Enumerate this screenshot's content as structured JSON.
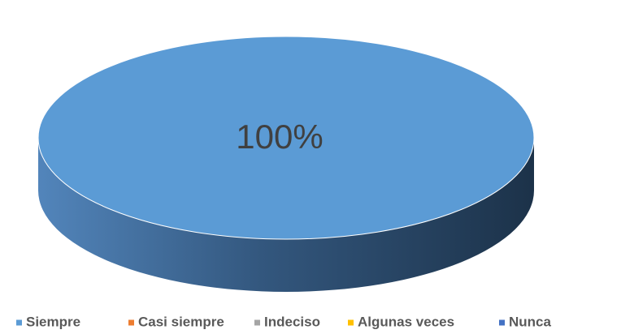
{
  "chart_data": {
    "type": "pie",
    "categories": [
      "Siempre",
      "Casi siempre",
      "Indeciso",
      "Algunas veces",
      "Nunca"
    ],
    "values": [
      100,
      0,
      0,
      0,
      0
    ],
    "value_labels": [
      "100%",
      null,
      null,
      null,
      null
    ],
    "colors": [
      "#5b9bd5",
      "#ed7d31",
      "#a5a5a5",
      "#ffc000",
      "#4472c4"
    ],
    "legend": "bottom"
  }
}
